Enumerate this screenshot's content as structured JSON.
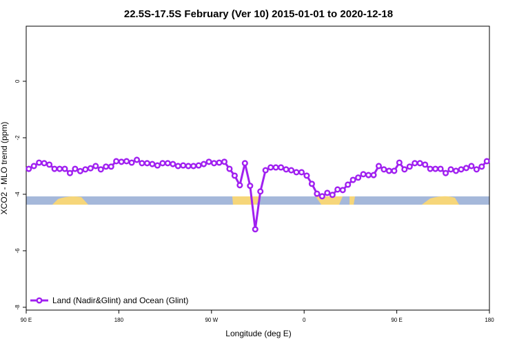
{
  "chart_data": {
    "type": "line",
    "title": "22.5S-17.5S February (Ver 10)   2015-01-01 to 2020-12-18",
    "x_label": "Longitude (deg E)",
    "y_label": "XCO2 - MLO trend (ppm)",
    "x": [
      92.5,
      97.5,
      102.5,
      107.5,
      112.5,
      117.5,
      122.5,
      127.5,
      132.5,
      137.5,
      142.5,
      147.5,
      152.5,
      157.5,
      162.5,
      167.5,
      172.5,
      177.5,
      182.5,
      187.5,
      192.5,
      197.5,
      202.5,
      207.5,
      212.5,
      217.5,
      222.5,
      227.5,
      232.5,
      237.5,
      242.5,
      247.5,
      252.5,
      257.5,
      262.5,
      267.5,
      272.5,
      277.5,
      282.5,
      287.5,
      292.5,
      297.5,
      302.5,
      307.5,
      312.5,
      317.5,
      322.5,
      327.5,
      332.5,
      337.5,
      342.5,
      347.5,
      352.5,
      357.5,
      362.5,
      367.5,
      372.5,
      377.5,
      382.5,
      387.5,
      392.5,
      397.5,
      402.5,
      407.5,
      412.5,
      417.5,
      422.5,
      427.5,
      432.5,
      437.5,
      442.5,
      447.5,
      452.5,
      457.5,
      462.5,
      467.5,
      472.5,
      477.5,
      482.5,
      487.5,
      492.5,
      497.5,
      502.5,
      507.5,
      512.5,
      517.5,
      522.5,
      527.5,
      532.5,
      537.5
    ],
    "series": [
      {
        "name": "Land (Nadir&Glint) and Ocean (Glint)",
        "color": "#a020f0",
        "values": [
          -3.1,
          -3.0,
          -2.88,
          -2.9,
          -2.95,
          -3.1,
          -3.1,
          -3.1,
          -3.25,
          -3.1,
          -3.18,
          -3.12,
          -3.08,
          -3.0,
          -3.12,
          -3.02,
          -3.02,
          -2.83,
          -2.85,
          -2.83,
          -2.88,
          -2.78,
          -2.9,
          -2.9,
          -2.93,
          -2.98,
          -2.9,
          -2.9,
          -2.93,
          -3.0,
          -2.98,
          -3.0,
          -3.0,
          -2.98,
          -2.93,
          -2.85,
          -2.9,
          -2.88,
          -2.85,
          -3.1,
          -3.34,
          -3.68,
          -2.9,
          -3.7,
          -5.24,
          -3.9,
          -3.15,
          -3.05,
          -3.05,
          -3.05,
          -3.12,
          -3.15,
          -3.22,
          -3.22,
          -3.34,
          -3.63,
          -3.98,
          -4.07,
          -3.95,
          -4.02,
          -3.83,
          -3.85,
          -3.66,
          -3.49,
          -3.41,
          -3.29,
          -3.32,
          -3.32,
          -3.0,
          -3.12,
          -3.17,
          -3.17,
          -2.88,
          -3.12,
          -3.02,
          -2.9,
          -2.9,
          -2.95,
          -3.1,
          -3.1,
          -3.1,
          -3.25,
          -3.12,
          -3.17,
          -3.12,
          -3.07,
          -3.0,
          -3.12,
          -3.02,
          -2.83
        ]
      }
    ],
    "xlim": [
      90,
      540
    ],
    "xticks": [
      {
        "value": 90,
        "label": "90 E"
      },
      {
        "value": 180,
        "label": "180"
      },
      {
        "value": 270,
        "label": "90 W"
      },
      {
        "value": 360,
        "label": "0"
      },
      {
        "value": 450,
        "label": "90 E"
      },
      {
        "value": 540,
        "label": "180"
      }
    ],
    "ylim": [
      -8.1,
      1.95
    ],
    "yticks": [
      0,
      -2,
      -4,
      -6,
      -8
    ],
    "legend": "lower left"
  }
}
